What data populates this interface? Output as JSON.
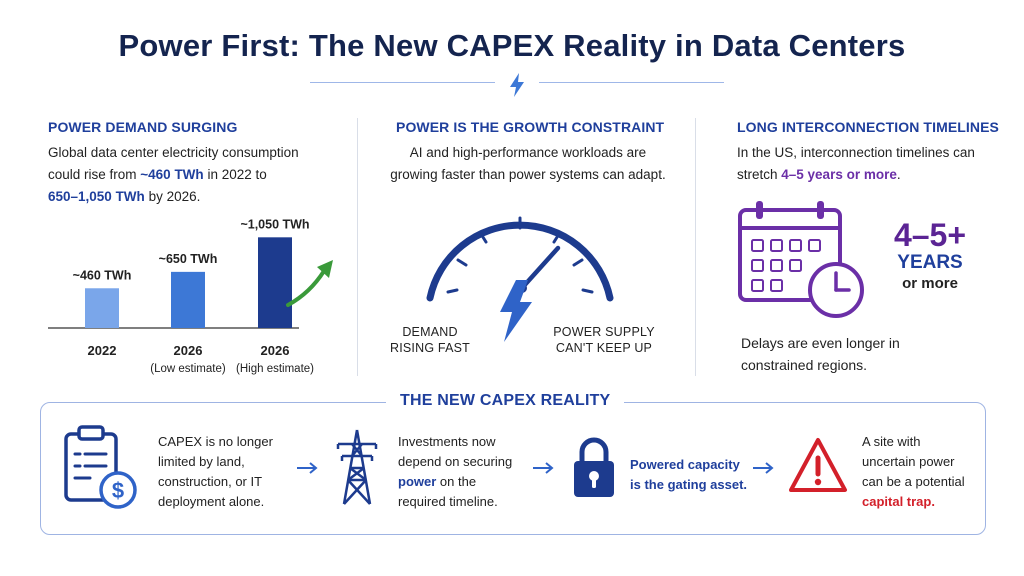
{
  "title": "Power First: The New CAPEX Reality in Data Centers",
  "colors": {
    "navy": "#14244f",
    "blue": "#1f3f9c",
    "purple": "#5b2494",
    "red": "#d3202a",
    "green": "#3a9a3a"
  },
  "col1": {
    "title": "POWER DEMAND SURGING",
    "text_a": "Global data center electricity consumption",
    "text_b": "could rise from ",
    "hl_1": "~460 TWh",
    "text_c": " in 2022 to",
    "hl_2": "650–1,050 TWh",
    "text_d": " by 2026."
  },
  "chart_data": {
    "type": "bar",
    "categories": [
      "2022",
      "2026",
      "2026"
    ],
    "subcategories": [
      "",
      "(Low estimate)",
      "(High estimate)"
    ],
    "values": [
      460,
      650,
      1050
    ],
    "value_labels": [
      "~460 TWh",
      "~650 TWh",
      "~1,050 TWh"
    ],
    "colors": [
      "#7aa6ea",
      "#3d78d6",
      "#1d3b8e"
    ],
    "title": "",
    "xlabel": "",
    "ylabel": "",
    "ylim": [
      0,
      1100
    ],
    "trend": "up"
  },
  "col2": {
    "title": "POWER IS THE GROWTH CONSTRAINT",
    "text_a": "AI and high-performance workloads are",
    "text_b": "growing faster than power systems can adapt.",
    "label_left_a": "DEMAND",
    "label_left_b": "RISING FAST",
    "label_right_a": "POWER SUPPLY",
    "label_right_b": "CAN'T KEEP UP"
  },
  "col3": {
    "title": "LONG INTERCONNECTION TIMELINES",
    "text_a": "In the US, interconnection timelines can",
    "text_b": "stretch ",
    "hl": "4–5 years or more",
    "text_c": ".",
    "big_num": "4–5+",
    "big_unit": "YEARS",
    "big_more": "or more",
    "note_a": "Delays are even longer in",
    "note_b": "constrained regions."
  },
  "bottom": {
    "title": "THE NEW CAPEX REALITY",
    "step1": [
      "CAPEX is no longer",
      "limited by land,",
      "construction, or IT",
      "deployment alone."
    ],
    "step2_a": "Investments now",
    "step2_b": "depend on securing",
    "step2_hl": "power",
    "step2_c": " on the",
    "step2_d": "required timeline.",
    "step3": [
      "Powered capacity",
      "is the gating asset."
    ],
    "step4_a": "A site with",
    "step4_b": "uncertain power",
    "step4_c": "can be a potential",
    "step4_hl": "capital trap."
  },
  "icons": [
    "lightning-bolt-icon",
    "trend-arrow-icon",
    "speedometer-gauge-icon",
    "calendar-icon",
    "clock-icon",
    "clipboard-dollar-icon",
    "transmission-tower-icon",
    "padlock-icon",
    "warning-triangle-icon",
    "arrow-right-icon"
  ]
}
